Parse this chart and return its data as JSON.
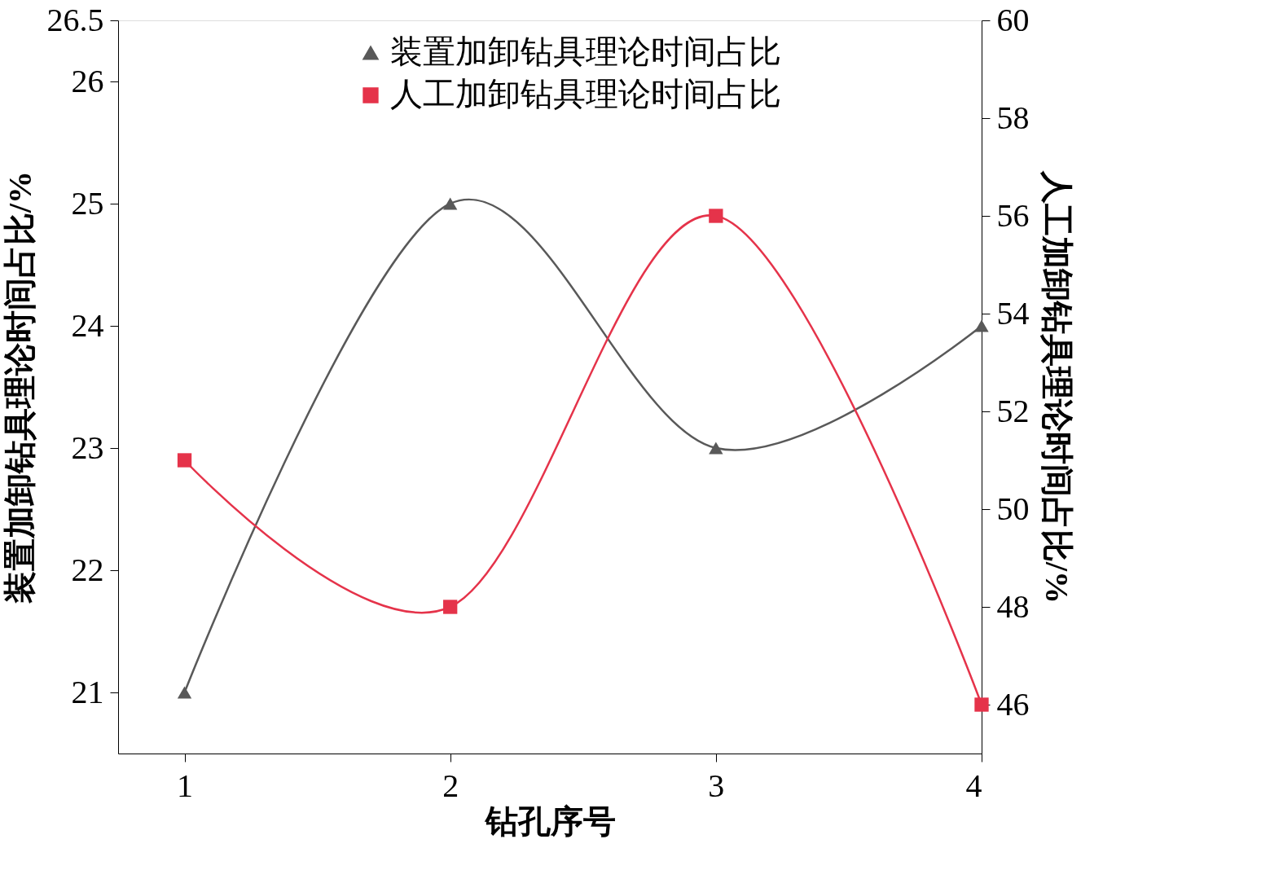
{
  "chart_data": {
    "type": "line",
    "xlabel": "钻孔序号",
    "ylabel": "装置加卸钻具理论时间占比/%",
    "y2label": "人工加卸钻具理论时间占比/%",
    "x": [
      1,
      2,
      3,
      4
    ],
    "xlim": [
      0.75,
      4
    ],
    "xticks": [
      1,
      2,
      3,
      4
    ],
    "ylim": [
      20.5,
      26.5
    ],
    "yticks": [
      21,
      22,
      23,
      24,
      25,
      26,
      26.5
    ],
    "y2lim": [
      45,
      60
    ],
    "y2ticks": [
      46,
      48,
      50,
      52,
      54,
      56,
      58,
      60
    ],
    "grid": false,
    "legend": "top",
    "line_style": "solid",
    "series": [
      {
        "name": "装置加卸钻具理论时间占比",
        "color": "#595959",
        "marker": "triangle",
        "values": [
          21,
          25,
          23,
          24
        ]
      },
      {
        "name": "人工加卸钻具理论时间占比",
        "color": "#e5334a",
        "marker": "square",
        "axis": "y2",
        "values": [
          51,
          48,
          56,
          46
        ]
      }
    ]
  }
}
